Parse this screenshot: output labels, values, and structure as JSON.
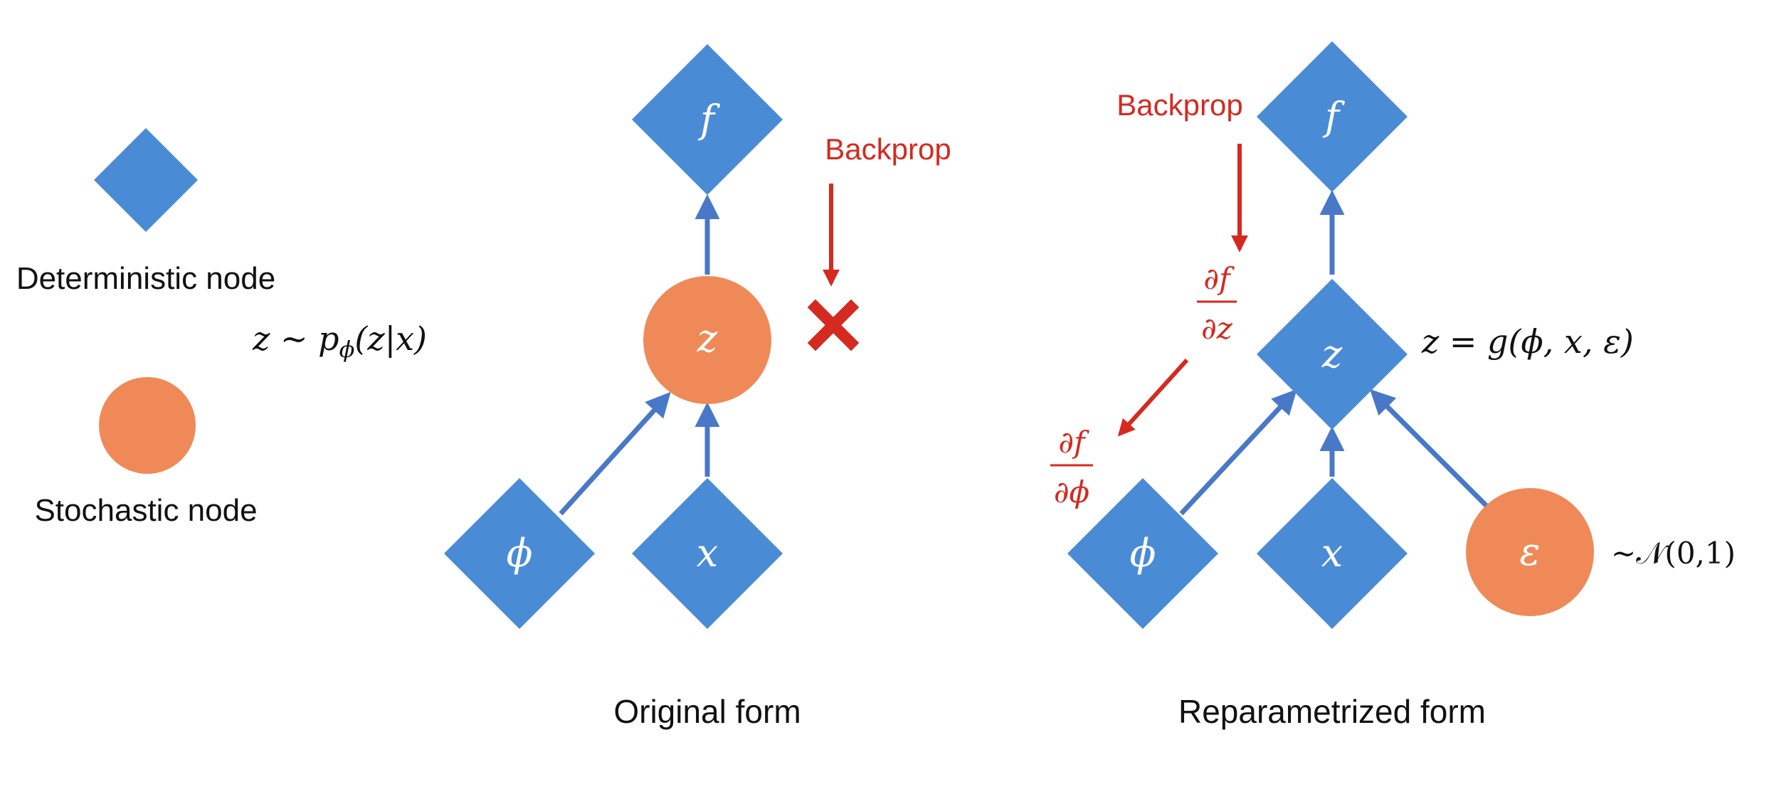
{
  "legend": {
    "deterministic_label": "Deterministic node",
    "stochastic_label": "Stochastic node"
  },
  "original": {
    "caption": "Original form",
    "backprop_label": "Backprop",
    "z_label": "z ~ p",
    "z_label_sub": "ϕ",
    "z_label_tail": "(z|x)",
    "nodes": {
      "f": "f",
      "z": "z",
      "phi": "ϕ",
      "x": "x"
    }
  },
  "reparam": {
    "caption": "Reparametrized form",
    "backprop_label": "Backprop",
    "z_label": "z = g(ϕ, x, ε)",
    "eps_label": "~𝒩(0,1)",
    "grad_z_num": "∂f",
    "grad_z_den": "∂z",
    "grad_phi_num": "∂f",
    "grad_phi_den": "∂ϕ",
    "nodes": {
      "f": "f",
      "z": "z",
      "phi": "ϕ",
      "x": "x",
      "eps": "ε"
    }
  },
  "colors": {
    "deterministic": "#4a8bd6",
    "stochastic": "#ef8a58",
    "edge": "#4a78c8",
    "backprop": "#d42a20",
    "text": "#111111"
  }
}
